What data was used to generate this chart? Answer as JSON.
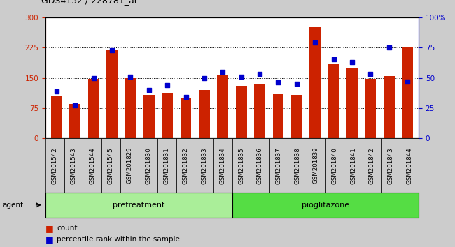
{
  "title": "GDS4132 / 228781_at",
  "samples": [
    "GSM201542",
    "GSM201543",
    "GSM201544",
    "GSM201545",
    "GSM201829",
    "GSM201830",
    "GSM201831",
    "GSM201832",
    "GSM201833",
    "GSM201834",
    "GSM201835",
    "GSM201836",
    "GSM201837",
    "GSM201838",
    "GSM201839",
    "GSM201840",
    "GSM201841",
    "GSM201842",
    "GSM201843",
    "GSM201844"
  ],
  "counts": [
    105,
    85,
    147,
    218,
    150,
    108,
    112,
    100,
    120,
    158,
    130,
    133,
    110,
    108,
    275,
    183,
    175,
    148,
    155,
    225
  ],
  "percentiles": [
    39,
    27,
    50,
    73,
    51,
    40,
    44,
    34,
    50,
    55,
    51,
    53,
    46,
    45,
    79,
    65,
    63,
    53,
    75,
    47
  ],
  "bar_color": "#cc2200",
  "dot_color": "#0000cc",
  "group_labels": [
    "pretreatment",
    "pioglitazone"
  ],
  "group_colors": [
    "#aaee99",
    "#55dd44"
  ],
  "group_boundaries": [
    0,
    10,
    20
  ],
  "agent_label": "agent",
  "legend_count_label": "count",
  "legend_pct_label": "percentile rank within the sample",
  "bg_color": "#cccccc",
  "plot_bg": "#ffffff"
}
